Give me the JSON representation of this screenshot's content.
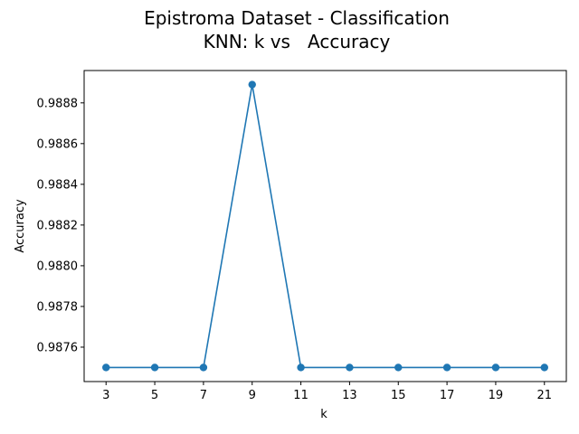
{
  "chart_data": {
    "type": "line",
    "title": "Epistroma Dataset - Classification\nKNN: k vs   Accuracy",
    "xlabel": "k",
    "ylabel": "Accuracy",
    "x": [
      3,
      5,
      7,
      9,
      11,
      13,
      15,
      17,
      19,
      21
    ],
    "series": [
      {
        "values": [
          0.9875,
          0.9875,
          0.9875,
          0.98889,
          0.9875,
          0.9875,
          0.9875,
          0.9875,
          0.9875,
          0.9875
        ],
        "color": "#1f77b4",
        "marker": "circle"
      }
    ],
    "xticks": [
      "3",
      "5",
      "7",
      "9",
      "11",
      "13",
      "15",
      "17",
      "19",
      "21"
    ],
    "yticks": [
      "0.9876",
      "0.9878",
      "0.9880",
      "0.9882",
      "0.9884",
      "0.9886",
      "0.9888"
    ],
    "xlim": [
      2.1,
      21.9
    ],
    "ylim": [
      0.987431,
      0.988959
    ],
    "grid": false,
    "legend": "none"
  }
}
